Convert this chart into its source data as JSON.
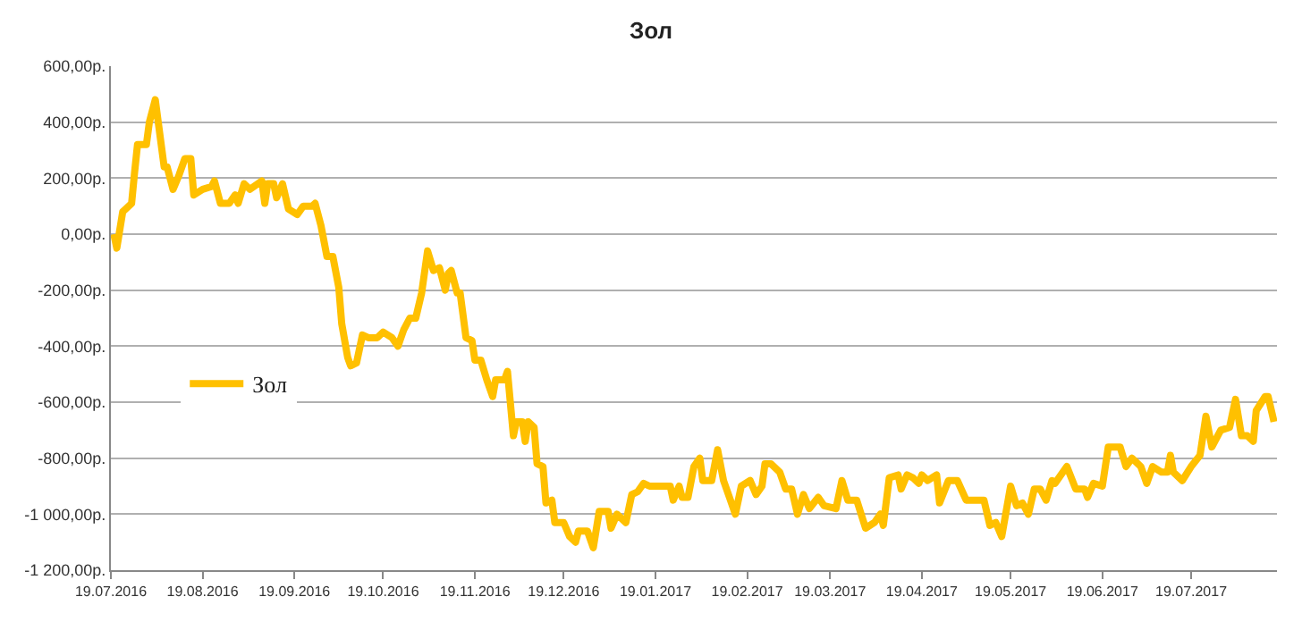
{
  "chart_data": {
    "type": "line",
    "title": "Зол",
    "x": [
      "2016-07-20",
      "2016-07-21",
      "2016-07-23",
      "2016-07-24",
      "2016-07-26",
      "2016-07-27",
      "2016-07-28",
      "2016-07-31",
      "2016-08-01",
      "2016-08-03",
      "2016-08-04",
      "2016-08-06",
      "2016-08-07",
      "2016-08-09",
      "2016-08-11",
      "2016-08-13",
      "2016-08-15",
      "2016-08-16",
      "2016-08-19",
      "2016-08-22",
      "2016-08-23",
      "2016-08-25",
      "2016-08-28",
      "2016-08-30",
      "2016-08-31",
      "2016-09-02",
      "2016-09-04",
      "2016-09-08",
      "2016-09-09",
      "2016-09-10",
      "2016-09-12",
      "2016-09-13",
      "2016-09-15",
      "2016-09-17",
      "2016-09-20",
      "2016-09-22",
      "2016-09-25",
      "2016-09-26",
      "2016-09-28",
      "2016-09-30",
      "2016-10-02",
      "2016-10-04",
      "2016-10-05",
      "2016-10-07",
      "2016-10-08",
      "2016-10-10",
      "2016-10-12",
      "2016-10-14",
      "2016-10-17",
      "2016-10-19",
      "2016-10-22",
      "2016-10-24",
      "2016-10-26",
      "2016-10-28",
      "2016-10-30",
      "2016-11-01",
      "2016-11-03",
      "2016-11-05",
      "2016-11-07",
      "2016-11-09",
      "2016-11-10",
      "2016-11-11",
      "2016-11-13",
      "2016-11-14",
      "2016-11-16",
      "2016-11-18",
      "2016-11-19",
      "2016-11-21",
      "2016-11-23",
      "2016-11-25",
      "2016-11-26",
      "2016-11-29",
      "2016-11-30",
      "2016-12-02",
      "2016-12-03",
      "2016-12-05",
      "2016-12-06",
      "2016-12-07",
      "2016-12-09",
      "2016-12-10",
      "2016-12-12",
      "2016-12-13",
      "2016-12-15",
      "2016-12-16",
      "2016-12-19",
      "2016-12-21",
      "2016-12-23",
      "2016-12-24",
      "2016-12-27",
      "2016-12-29",
      "2016-12-31",
      "2017-01-03",
      "2017-01-04",
      "2017-01-06",
      "2017-01-09",
      "2017-01-11",
      "2017-01-13",
      "2017-01-15",
      "2017-01-17",
      "2017-01-20",
      "2017-01-24",
      "2017-01-25",
      "2017-01-27",
      "2017-01-28",
      "2017-01-30",
      "2017-02-01",
      "2017-02-03",
      "2017-02-04",
      "2017-02-07",
      "2017-02-09",
      "2017-02-11",
      "2017-02-13",
      "2017-02-15",
      "2017-02-17",
      "2017-02-20",
      "2017-02-22",
      "2017-02-24",
      "2017-02-25",
      "2017-02-27",
      "2017-03-02",
      "2017-03-04",
      "2017-03-06",
      "2017-03-08",
      "2017-03-10",
      "2017-03-12",
      "2017-03-15",
      "2017-03-17",
      "2017-03-21",
      "2017-03-23",
      "2017-03-25",
      "2017-03-28",
      "2017-03-31",
      "2017-04-03",
      "2017-04-05",
      "2017-04-06",
      "2017-04-08",
      "2017-04-11",
      "2017-04-12",
      "2017-04-14",
      "2017-04-16",
      "2017-04-18",
      "2017-04-19",
      "2017-04-21",
      "2017-04-24",
      "2017-04-25",
      "2017-04-28",
      "2017-05-01",
      "2017-05-04",
      "2017-05-10",
      "2017-05-12",
      "2017-05-14",
      "2017-05-16",
      "2017-05-19",
      "2017-05-21",
      "2017-05-23",
      "2017-05-25",
      "2017-05-27",
      "2017-05-29",
      "2017-05-31",
      "2017-06-02",
      "2017-06-03",
      "2017-06-07",
      "2017-06-10",
      "2017-06-13",
      "2017-06-14",
      "2017-06-16",
      "2017-06-19",
      "2017-06-21",
      "2017-06-25",
      "2017-06-27",
      "2017-06-29",
      "2017-07-02",
      "2017-07-04",
      "2017-07-06",
      "2017-07-09",
      "2017-07-11",
      "2017-07-12",
      "2017-07-13",
      "2017-07-16",
      "2017-07-19",
      "2017-07-22",
      "2017-07-24",
      "2017-07-26",
      "2017-07-29",
      "2017-08-01",
      "2017-08-03",
      "2017-08-05",
      "2017-08-07",
      "2017-08-09",
      "2017-08-10",
      "2017-08-13",
      "2017-08-14",
      "2017-08-16"
    ],
    "series": [
      {
        "name": "Зол",
        "color": "#ffc000",
        "values": [
          0,
          -50,
          80,
          90,
          110,
          220,
          320,
          320,
          400,
          480,
          400,
          240,
          240,
          160,
          210,
          270,
          270,
          140,
          160,
          170,
          190,
          110,
          110,
          140,
          110,
          180,
          160,
          190,
          110,
          180,
          180,
          130,
          180,
          90,
          70,
          100,
          100,
          110,
          30,
          -80,
          -80,
          -190,
          -320,
          -440,
          -470,
          -460,
          -360,
          -370,
          -370,
          -350,
          -370,
          -400,
          -340,
          -300,
          -300,
          -210,
          -60,
          -130,
          -120,
          -200,
          -140,
          -130,
          -210,
          -210,
          -370,
          -380,
          -450,
          -450,
          -520,
          -580,
          -520,
          -520,
          -490,
          -720,
          -670,
          -670,
          -740,
          -670,
          -690,
          -820,
          -830,
          -960,
          -950,
          -1030,
          -1030,
          -1080,
          -1100,
          -1060,
          -1060,
          -1120,
          -990,
          -990,
          -1050,
          -1000,
          -1030,
          -930,
          -920,
          -890,
          -900,
          -900,
          -900,
          -950,
          -900,
          -940,
          -940,
          -830,
          -800,
          -880,
          -880,
          -770,
          -880,
          -940,
          -1000,
          -900,
          -880,
          -930,
          -900,
          -820,
          -820,
          -850,
          -910,
          -910,
          -1000,
          -930,
          -980,
          -940,
          -970,
          -980,
          -880,
          -950,
          -950,
          -1050,
          -1030,
          -1000,
          -1040,
          -870,
          -860,
          -910,
          -860,
          -870,
          -890,
          -860,
          -880,
          -860,
          -960,
          -880,
          -880,
          -950,
          -950,
          -1040,
          -1030,
          -1080,
          -900,
          -970,
          -960,
          -1000,
          -910,
          -910,
          -950,
          -880,
          -890,
          -830,
          -910,
          -910,
          -940,
          -890,
          -900,
          -760,
          -760,
          -830,
          -800,
          -830,
          -890,
          -830,
          -850,
          -850,
          -790,
          -850,
          -880,
          -830,
          -790,
          -650,
          -760,
          -700,
          -690,
          -590,
          -720,
          -720,
          -740,
          -630,
          -580,
          -580,
          -670
        ]
      }
    ],
    "xlim": [
      "2016-07-19",
      "2017-08-17"
    ],
    "xticks": [
      {
        "value": "2016-07-19",
        "label": "19.07.2016"
      },
      {
        "value": "2016-08-19",
        "label": "19.08.2016"
      },
      {
        "value": "2016-09-19",
        "label": "19.09.2016"
      },
      {
        "value": "2016-10-19",
        "label": "19.10.2016"
      },
      {
        "value": "2016-11-19",
        "label": "19.11.2016"
      },
      {
        "value": "2016-12-19",
        "label": "19.12.2016"
      },
      {
        "value": "2017-01-19",
        "label": "19.01.2017"
      },
      {
        "value": "2017-02-19",
        "label": "19.02.2017"
      },
      {
        "value": "2017-03-19",
        "label": "19.03.2017"
      },
      {
        "value": "2017-04-19",
        "label": "19.04.2017"
      },
      {
        "value": "2017-05-19",
        "label": "19.05.2017"
      },
      {
        "value": "2017-06-19",
        "label": "19.06.2017"
      },
      {
        "value": "2017-07-19",
        "label": "19.07.2017"
      }
    ],
    "ylim": [
      -1200,
      600
    ],
    "yticks": [
      {
        "value": 600,
        "label": "600,00р."
      },
      {
        "value": 400,
        "label": "400,00р."
      },
      {
        "value": 200,
        "label": "200,00р."
      },
      {
        "value": 0,
        "label": "0,00р."
      },
      {
        "value": -200,
        "label": "-200,00р."
      },
      {
        "value": -400,
        "label": "-400,00р."
      },
      {
        "value": -600,
        "label": "-600,00р."
      },
      {
        "value": -800,
        "label": "-800,00р."
      },
      {
        "value": -1000,
        "label": "-1 000,00р."
      },
      {
        "value": -1200,
        "label": "-1 200,00р."
      }
    ],
    "grid": "y",
    "legend": "left",
    "marker": "none",
    "line_style": "solid"
  }
}
